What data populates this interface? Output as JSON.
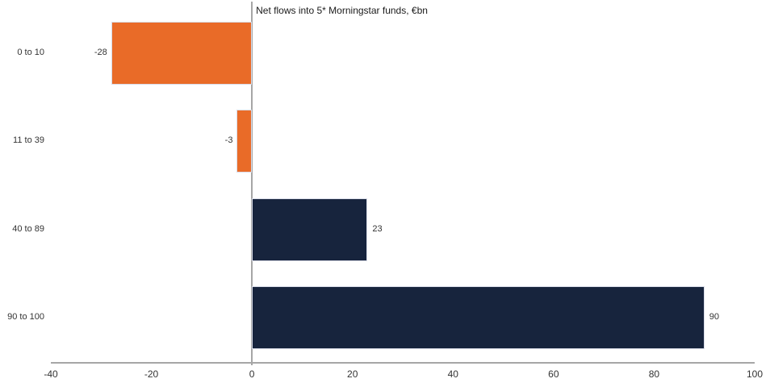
{
  "chart_data": {
    "type": "bar",
    "orientation": "horizontal",
    "title": "Net flows into 5* Morningstar funds, €bn",
    "categories": [
      "0 to 10",
      "11 to 39",
      "40 to 89",
      "90 to 100"
    ],
    "values": [
      -28,
      -3,
      23,
      90
    ],
    "value_labels": [
      "-28",
      "-3",
      "23",
      "90"
    ],
    "bar_colors": [
      "#E96B28",
      "#E96B28",
      "#17243D",
      "#17243D"
    ],
    "xlim": [
      -40,
      100
    ],
    "x_ticks": [
      -40,
      -20,
      0,
      20,
      40,
      60,
      80,
      100
    ],
    "xlabel": "",
    "ylabel": "",
    "legend": "none",
    "grid": "off",
    "axis_color": "#A6A6A6",
    "text_color": "#333333",
    "negative_color": "#E96B28",
    "positive_color": "#17243D"
  }
}
